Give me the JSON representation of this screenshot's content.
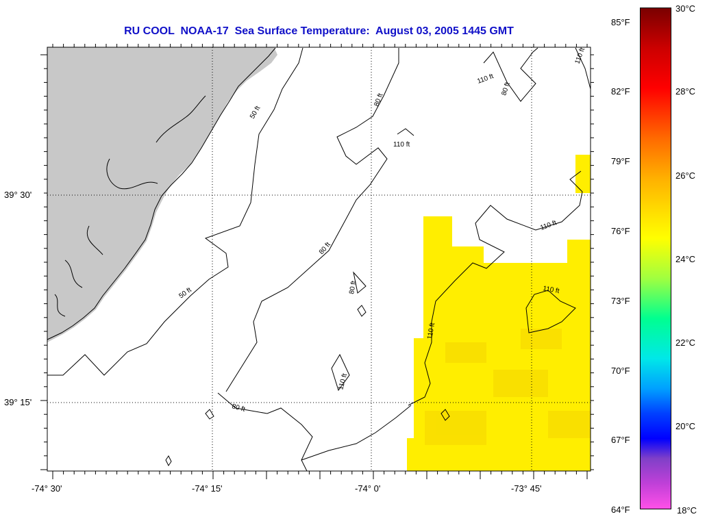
{
  "title": "RU COOL  NOAA-17  Sea Surface Temperature:  August 03, 2005 1445 GMT",
  "lat_labels": [
    "39° 30'",
    "39° 15'"
  ],
  "lon_labels": [
    "-74° 30'",
    "-74° 15'",
    "-74° 0'",
    "-73° 45'"
  ],
  "contour_labels": [
    "110 ft",
    "80 ft",
    "50 ft",
    "80 ft",
    "110 ft",
    "110 ft",
    "80 ft",
    "50 ft",
    "80 ft",
    "110 ft",
    "80 ft",
    "110 ft",
    "110 ft",
    "110 ft"
  ],
  "colorbar": {
    "fahrenheit": [
      "85°F",
      "82°F",
      "79°F",
      "76°F",
      "73°F",
      "70°F",
      "67°F",
      "64°F"
    ],
    "celsius": [
      "30°C",
      "28°C",
      "26°C",
      "24°C",
      "22°C",
      "20°C",
      "18°C"
    ]
  },
  "colors": {
    "land": "#c8c8c8",
    "sst_warm": "#ffee00",
    "title": "#1010c8"
  }
}
